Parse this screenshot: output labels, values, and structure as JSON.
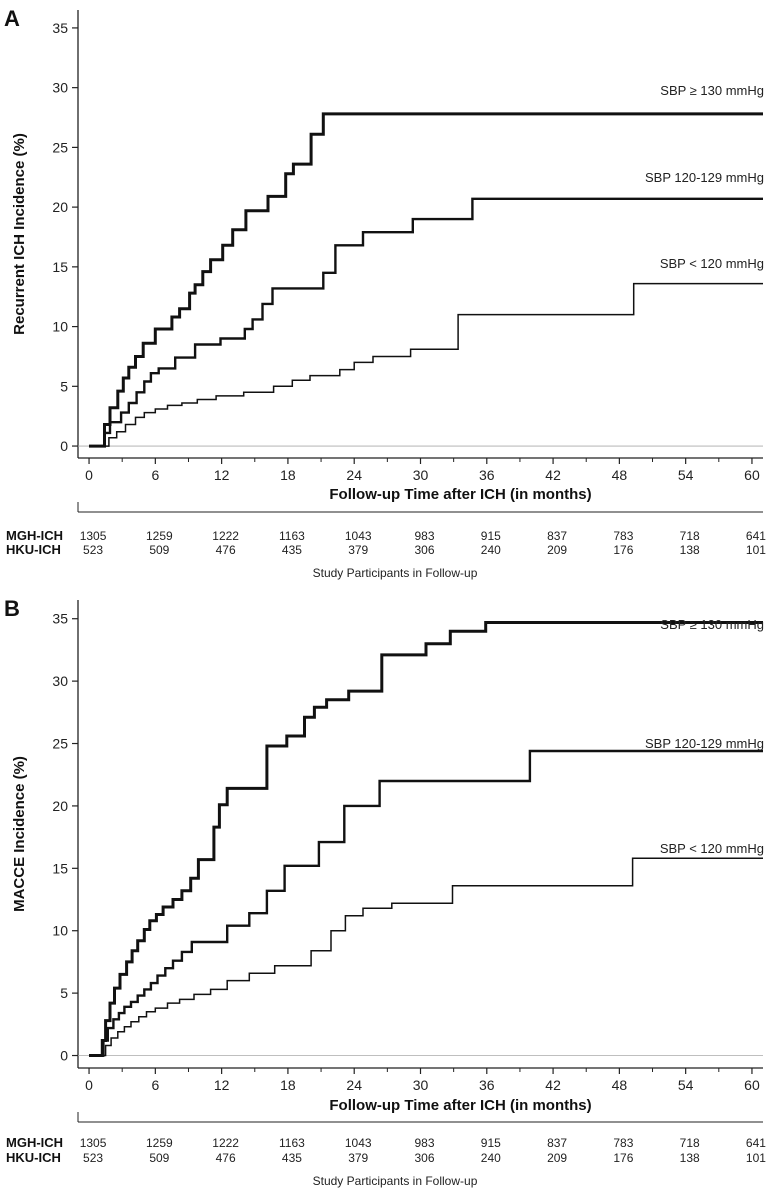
{
  "chart_data": [
    {
      "type": "line",
      "panel": "A",
      "ylabel": "Recurrent ICH Incidence (%)",
      "xlabel": "Follow-up Time after ICH (in months)",
      "xlim": [
        -1,
        61
      ],
      "ylim": [
        -1,
        36.5
      ],
      "xticks": [
        "0",
        "6",
        "12",
        "18",
        "24",
        "30",
        "36",
        "42",
        "48",
        "54",
        "60"
      ],
      "yticks": [
        "0",
        "5",
        "10",
        "15",
        "20",
        "25",
        "30",
        "35"
      ],
      "series": [
        {
          "name": "SBP ≥ 130 mmHg",
          "width": 3,
          "x": [
            0,
            1,
            1.4,
            1.9,
            2.6,
            3.1,
            3.6,
            4.2,
            4.9,
            6,
            7.5,
            8.2,
            9.1,
            9.6,
            10.3,
            11,
            12.1,
            13,
            14.2,
            16.2,
            17.8,
            18.5,
            20.1,
            21.2,
            25.5,
            34.2,
            61
          ],
          "y": [
            0,
            0,
            1.8,
            3.2,
            4.6,
            5.7,
            6.6,
            7.5,
            8.6,
            9.8,
            10.8,
            11.5,
            12.8,
            13.5,
            14.6,
            15.6,
            16.8,
            18.1,
            19.7,
            20.9,
            22.8,
            23.6,
            26.1,
            27.8,
            27.8,
            27.8,
            27.8
          ]
        },
        {
          "name": "SBP 120-129 mmHg",
          "width": 2.4,
          "x": [
            0,
            1,
            1.4,
            1.9,
            2.9,
            3.6,
            4.3,
            5,
            5.6,
            6.3,
            7.8,
            9.6,
            11.9,
            14.1,
            14.8,
            15.7,
            16.6,
            17.9,
            21.2,
            22.3,
            24.8,
            29.3,
            34.7,
            40.7,
            61
          ],
          "y": [
            0,
            0,
            1.1,
            2,
            2.8,
            3.6,
            4.5,
            5.4,
            6.1,
            6.5,
            7.4,
            8.5,
            9,
            9.8,
            10.6,
            11.9,
            13.2,
            13.2,
            14.5,
            16.8,
            17.9,
            19,
            20.7,
            20.7,
            20.7
          ]
        },
        {
          "name": "SBP < 120 mmHg",
          "width": 1.5,
          "x": [
            0,
            1.2,
            1.8,
            2.5,
            3.3,
            4.2,
            5,
            6,
            7.1,
            8.4,
            9.8,
            11.5,
            14,
            16.7,
            18.4,
            20,
            22.7,
            24,
            25.7,
            29.1,
            33.4,
            39,
            49.3,
            61
          ],
          "y": [
            0,
            0,
            0.7,
            1.2,
            1.8,
            2.4,
            2.8,
            3.1,
            3.4,
            3.6,
            3.9,
            4.2,
            4.5,
            5,
            5.5,
            5.9,
            6.4,
            7,
            7.5,
            8.1,
            11,
            11,
            13.6,
            13.6
          ]
        }
      ],
      "series_labels": [
        "SBP ≥ 130 mmHg",
        "SBP 120-129 mmHg",
        "SBP < 120 mmHg"
      ],
      "at_risk": {
        "rows": [
          {
            "cohort": "MGH-ICH",
            "counts": [
              "1305",
              "1259",
              "1222",
              "1163",
              "1043",
              "983",
              "915",
              "837",
              "783",
              "718",
              "641"
            ]
          },
          {
            "cohort": "HKU-ICH",
            "counts": [
              "523",
              "509",
              "476",
              "435",
              "379",
              "306",
              "240",
              "209",
              "176",
              "138",
              "101"
            ]
          }
        ],
        "caption": "Study Participants in Follow-up"
      }
    },
    {
      "type": "line",
      "panel": "B",
      "ylabel": "MACCE Incidence (%)",
      "xlabel": "Follow-up Time after ICH (in months)",
      "xlim": [
        -1,
        61
      ],
      "ylim": [
        -1,
        36.5
      ],
      "xticks": [
        "0",
        "6",
        "12",
        "18",
        "24",
        "30",
        "36",
        "42",
        "48",
        "54",
        "60"
      ],
      "yticks": [
        "0",
        "5",
        "10",
        "15",
        "20",
        "25",
        "30",
        "35"
      ],
      "series": [
        {
          "name": "SBP ≥ 130 mmHg",
          "width": 3,
          "x": [
            0,
            1.2,
            1.5,
            1.9,
            2.3,
            2.8,
            3.4,
            3.9,
            4.4,
            5,
            5.5,
            6.1,
            6.7,
            7.6,
            8.4,
            9.2,
            9.9,
            11.3,
            11.8,
            12.5,
            13.4,
            16.1,
            17.9,
            19.5,
            20.4,
            21.5,
            23.5,
            26.5,
            27.8,
            30.5,
            32.7,
            35.9,
            42.5,
            61
          ],
          "y": [
            0,
            1.2,
            2.8,
            4.2,
            5.4,
            6.5,
            7.5,
            8.4,
            9.2,
            10.1,
            10.8,
            11.3,
            11.9,
            12.5,
            13.2,
            14.2,
            15.7,
            18.3,
            20.1,
            21.4,
            21.4,
            24.8,
            25.6,
            27.1,
            27.9,
            28.5,
            29.2,
            32.1,
            32.1,
            33,
            34,
            34.7,
            34.7,
            34.7
          ]
        },
        {
          "name": "SBP 120-129 mmHg",
          "width": 2.4,
          "x": [
            0,
            1.3,
            1.7,
            2.2,
            2.7,
            3.2,
            3.8,
            4.4,
            5,
            5.6,
            6.2,
            6.9,
            7.6,
            8.4,
            9.3,
            10.8,
            12.5,
            14.5,
            16.1,
            17.7,
            20.8,
            23.1,
            26.3,
            32.8,
            39.9,
            61
          ],
          "y": [
            0,
            1.2,
            2.2,
            2.9,
            3.4,
            3.9,
            4.3,
            4.8,
            5.3,
            5.8,
            6.4,
            7,
            7.6,
            8.3,
            9.1,
            9.1,
            10.4,
            11.4,
            13.2,
            15.2,
            17.1,
            20,
            22,
            22,
            24.4,
            24.4
          ]
        },
        {
          "name": "SBP < 120 mmHg",
          "width": 1.5,
          "x": [
            0,
            1.5,
            2,
            2.6,
            3.2,
            3.8,
            4.5,
            5.2,
            6,
            7.1,
            8.2,
            9.5,
            11,
            12.5,
            14.5,
            16.8,
            20.1,
            21.9,
            23.2,
            24.8,
            27.4,
            32.9,
            39.2,
            49.2,
            61
          ],
          "y": [
            0,
            0.8,
            1.4,
            1.9,
            2.3,
            2.7,
            3.1,
            3.5,
            3.8,
            4.2,
            4.5,
            4.9,
            5.3,
            6,
            6.6,
            7.2,
            8.4,
            10,
            11.2,
            11.8,
            12.2,
            13.6,
            13.6,
            15.8,
            15.8
          ]
        }
      ],
      "series_labels": [
        "SBP ≥ 130 mmHg",
        "SBP 120-129 mmHg",
        "SBP < 120 mmHg"
      ],
      "at_risk": {
        "rows": [
          {
            "cohort": "MGH-ICH",
            "counts": [
              "1305",
              "1259",
              "1222",
              "1163",
              "1043",
              "983",
              "915",
              "837",
              "783",
              "718",
              "641"
            ]
          },
          {
            "cohort": "HKU-ICH",
            "counts": [
              "523",
              "509",
              "476",
              "435",
              "379",
              "306",
              "240",
              "209",
              "176",
              "138",
              "101"
            ]
          }
        ],
        "caption": "Study Participants in Follow-up"
      }
    }
  ]
}
